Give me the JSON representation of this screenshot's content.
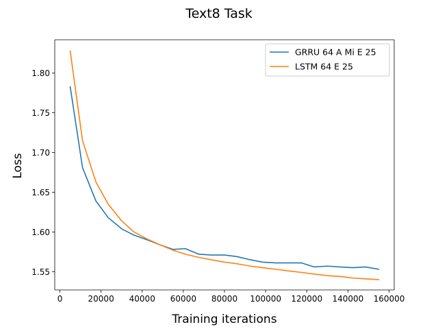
{
  "chart_data": {
    "type": "line",
    "title": "Text8 Task",
    "xlabel": "Training iterations",
    "ylabel": "Loss",
    "xlim": [
      -2500,
      162500
    ],
    "ylim": [
      1.527,
      1.842
    ],
    "x_ticks": [
      0,
      20000,
      40000,
      60000,
      80000,
      100000,
      120000,
      140000,
      160000
    ],
    "y_ticks": [
      1.55,
      1.6,
      1.65,
      1.7,
      1.75,
      1.8
    ],
    "grid": false,
    "legend_position": "upper right",
    "series": [
      {
        "name": "GRRU 64 A Mi E 25",
        "color": "#1f77b4",
        "x": [
          5000,
          11000,
          17500,
          23500,
          30000,
          36000,
          42500,
          48500,
          55000,
          61000,
          67500,
          73500,
          80000,
          86000,
          92500,
          98500,
          105000,
          111000,
          117500,
          123500,
          130000,
          136000,
          142500,
          148500,
          155000
        ],
        "y": [
          1.783,
          1.681,
          1.639,
          1.618,
          1.604,
          1.596,
          1.59,
          1.584,
          1.578,
          1.579,
          1.572,
          1.571,
          1.571,
          1.569,
          1.565,
          1.562,
          1.561,
          1.561,
          1.561,
          1.556,
          1.557,
          1.556,
          1.555,
          1.556,
          1.553
        ]
      },
      {
        "name": "LSTM 64 E 25",
        "color": "#ff7f0e",
        "x": [
          5000,
          11000,
          17500,
          23500,
          30000,
          36000,
          42500,
          48500,
          55000,
          61000,
          67500,
          73500,
          80000,
          86000,
          92500,
          98500,
          105000,
          111000,
          117500,
          123500,
          130000,
          136000,
          142500,
          148500,
          155000
        ],
        "y": [
          1.828,
          1.715,
          1.663,
          1.635,
          1.614,
          1.6,
          1.591,
          1.584,
          1.577,
          1.572,
          1.568,
          1.565,
          1.562,
          1.56,
          1.557,
          1.555,
          1.553,
          1.551,
          1.549,
          1.547,
          1.545,
          1.544,
          1.542,
          1.541,
          1.54
        ]
      }
    ]
  }
}
